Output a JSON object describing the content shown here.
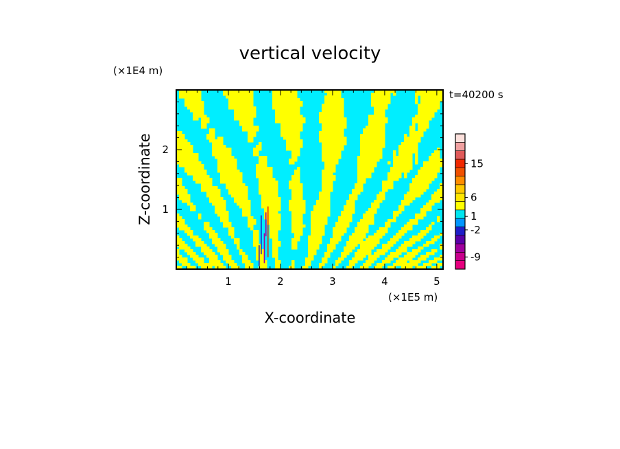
{
  "chart_data": {
    "type": "heatmap",
    "title": "vertical velocity",
    "time_label": "t=40200 s",
    "xlabel": "X-coordinate",
    "ylabel": "Z-coordinate",
    "x_unit": "(×1E5 m)",
    "y_unit": "(×1E4 m)",
    "xlim": [
      0,
      5.12
    ],
    "ylim": [
      0,
      3.0
    ],
    "x_ticks": [
      "1",
      "2",
      "3",
      "4",
      "5"
    ],
    "x_tick_values": [
      1,
      2,
      3,
      4,
      5
    ],
    "y_ticks": [
      "1",
      "2"
    ],
    "y_tick_values": [
      1,
      2
    ],
    "colorbar": {
      "bands": [
        {
          "color": "#e6007e"
        },
        {
          "color": "#c8008c"
        },
        {
          "color": "#a0009e"
        },
        {
          "color": "#5a00a8"
        },
        {
          "color": "#1e1ec8"
        },
        {
          "color": "#0096ff"
        },
        {
          "color": "#00e6f0"
        },
        {
          "color": "#ffff00"
        },
        {
          "color": "#ffe600"
        },
        {
          "color": "#ffc800"
        },
        {
          "color": "#ff8c00"
        },
        {
          "color": "#f05000"
        },
        {
          "color": "#f02800"
        },
        {
          "color": "#e05a5a"
        },
        {
          "color": "#f0a0a0"
        },
        {
          "color": "#fce0dc"
        }
      ],
      "labels": [
        "-9",
        "-2",
        "1",
        "6",
        "15"
      ]
    },
    "field": {
      "dominant_colors": [
        "#00eeff",
        "#ffff00"
      ],
      "accent_colors": [
        "#1e1ec8",
        "#a0009e",
        "#f02800"
      ]
    }
  }
}
